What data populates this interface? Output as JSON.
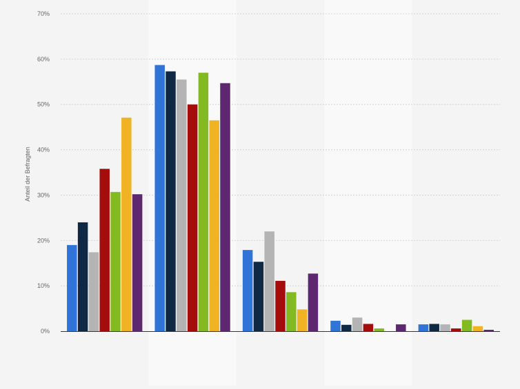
{
  "chart_data": {
    "type": "bar",
    "title": "",
    "xlabel": "",
    "ylabel": "Anteil der Befragten",
    "ylim": [
      0,
      70
    ],
    "yticks": [
      "0%",
      "10%",
      "20%",
      "30%",
      "40%",
      "50%",
      "60%",
      "70%"
    ],
    "grid": true,
    "legend": "none",
    "categories": [
      "",
      "",
      "",
      "",
      ""
    ],
    "series": [
      {
        "color": "#2f74d6",
        "values": [
          19,
          58.7,
          17.9,
          2.3,
          1.5
        ]
      },
      {
        "color": "#0f2944",
        "values": [
          24,
          57.3,
          15.3,
          1.4,
          1.6
        ]
      },
      {
        "color": "#b4b4b4",
        "values": [
          17.4,
          55.5,
          22,
          3,
          1.5
        ]
      },
      {
        "color": "#a50d0d",
        "values": [
          35.8,
          50,
          11.1,
          1.6,
          0.6
        ]
      },
      {
        "color": "#83ba22",
        "values": [
          30.7,
          57,
          8.6,
          0.6,
          2.5
        ]
      },
      {
        "color": "#f0b323",
        "values": [
          47.1,
          46.5,
          4.8,
          0,
          1.1
        ]
      },
      {
        "color": "#5e2870",
        "values": [
          30.2,
          54.7,
          12.7,
          1.5,
          0.3
        ]
      }
    ]
  }
}
